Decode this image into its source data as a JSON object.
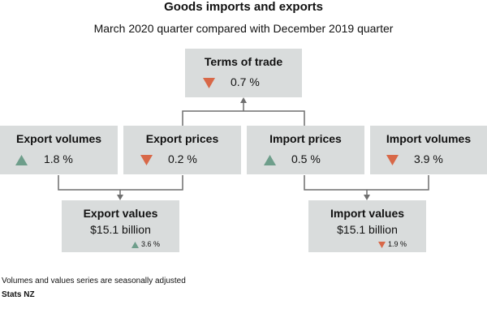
{
  "title": "Goods imports and exports",
  "subtitle": "March 2020 quarter compared with December 2019 quarter",
  "colors": {
    "box": "#d9dcdc",
    "up": "#6e9e8b",
    "down": "#d86848",
    "line": "#6f6f6f"
  },
  "terms_of_trade": {
    "label": "Terms of trade",
    "change": "0.7 %",
    "direction": "down"
  },
  "export_volumes": {
    "label": "Export volumes",
    "change": "1.8 %",
    "direction": "up"
  },
  "export_prices": {
    "label": "Export prices",
    "change": "0.2 %",
    "direction": "down"
  },
  "import_prices": {
    "label": "Import prices",
    "change": "0.5 %",
    "direction": "up"
  },
  "import_volumes": {
    "label": "Import volumes",
    "change": "3.9 %",
    "direction": "down"
  },
  "export_values": {
    "label": "Export values",
    "value": "$15.1 billion",
    "change": "3.6 %",
    "direction": "up"
  },
  "import_values": {
    "label": "Import values",
    "value": "$15.1 billion",
    "change": "1.9 %",
    "direction": "down"
  },
  "footnote": "Volumes and values series are seasonally adjusted",
  "source": "Stats NZ"
}
